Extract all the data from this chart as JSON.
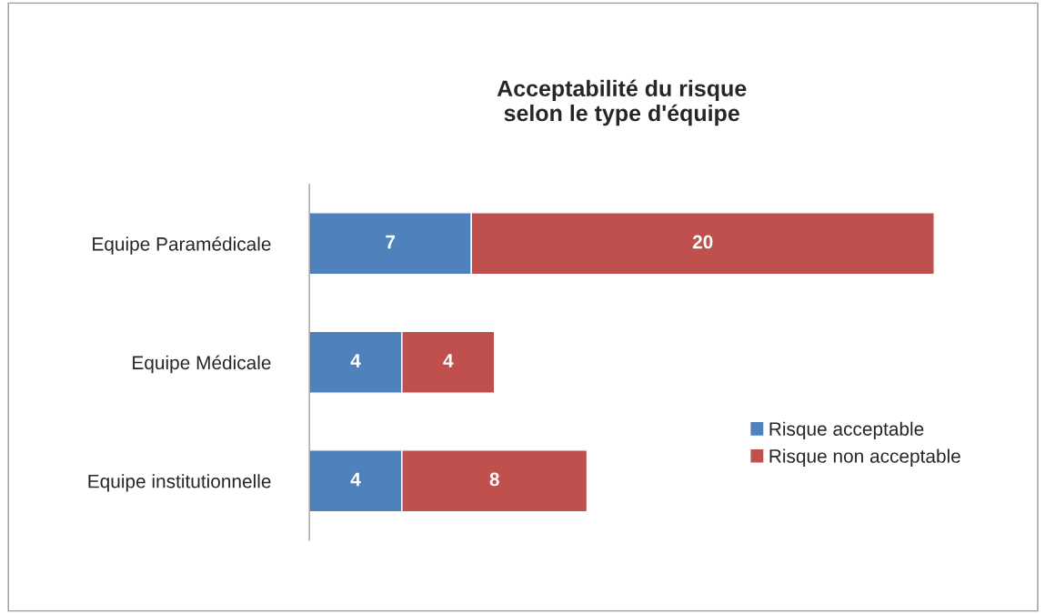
{
  "chart_data": {
    "type": "bar",
    "orientation": "horizontal",
    "stacked": true,
    "title": "Acceptabilité du risque\nselon le type d'équipe",
    "categories": [
      "Equipe Paramédicale",
      "Equipe Médicale",
      "Equipe institutionnelle"
    ],
    "series": [
      {
        "name": "Risque acceptable",
        "color": "#4f81bd",
        "values": [
          7,
          4,
          4
        ]
      },
      {
        "name": "Risque non acceptable",
        "color": "#c0504d",
        "values": [
          20,
          4,
          8
        ]
      }
    ],
    "data_labels": true,
    "legend": "right",
    "grid": false
  }
}
